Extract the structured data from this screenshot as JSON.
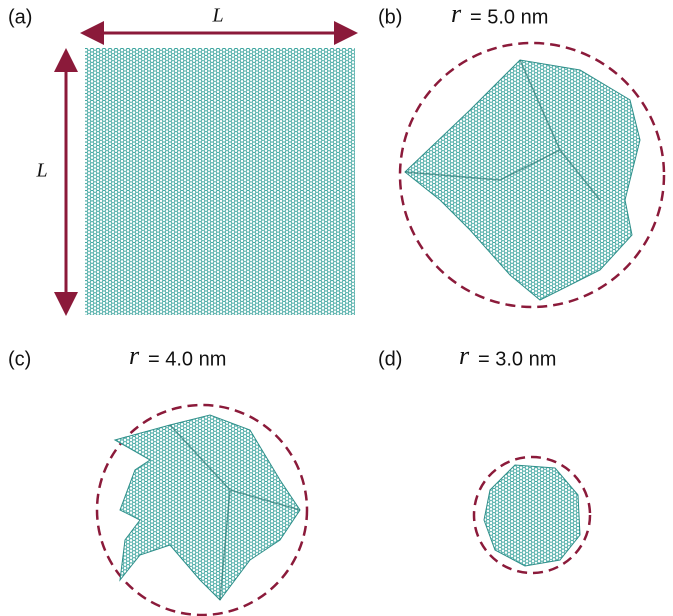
{
  "panels": [
    {
      "label": "(a)",
      "width_label": "L",
      "height_label": "L"
    },
    {
      "label": "(b)",
      "variable": "r",
      "value_text": "= 5.0 nm"
    },
    {
      "label": "(c)",
      "variable": "r",
      "value_text": "= 4.0 nm"
    },
    {
      "label": "(d)",
      "variable": "r",
      "value_text": "= 3.0 nm"
    }
  ]
}
